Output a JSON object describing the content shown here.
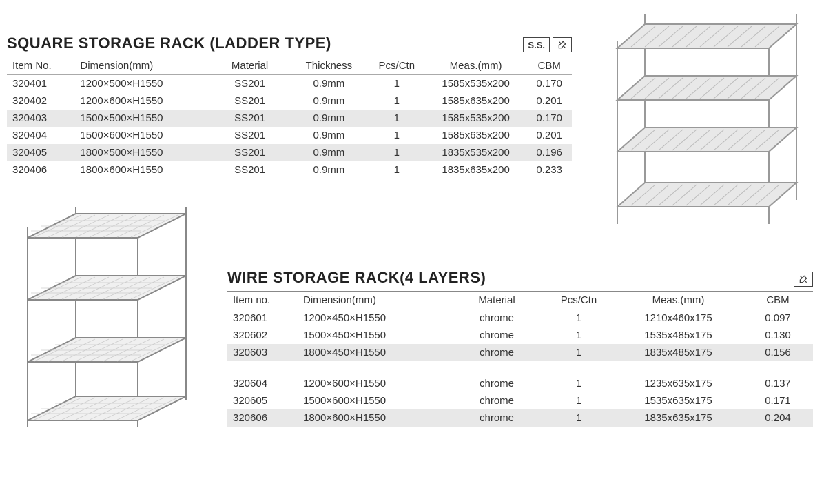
{
  "section1": {
    "title": "SQUARE STORAGE RACK (LADDER TYPE)",
    "badges": [
      "S.S."
    ],
    "columns": [
      "Item No.",
      "Dimension(mm)",
      "Material",
      "Thickness",
      "Pcs/Ctn",
      "Meas.(mm)",
      "CBM"
    ],
    "rows": [
      {
        "item": "320401",
        "dim": "1200×500×H1550",
        "mat": "SS201",
        "thk": "0.9mm",
        "pcs": "1",
        "meas": "1585x535x200",
        "cbm": "0.170"
      },
      {
        "item": "320402",
        "dim": "1200×600×H1550",
        "mat": "SS201",
        "thk": "0.9mm",
        "pcs": "1",
        "meas": "1585x635x200",
        "cbm": "0.201"
      },
      {
        "item": "320403",
        "dim": "1500×500×H1550",
        "mat": "SS201",
        "thk": "0.9mm",
        "pcs": "1",
        "meas": "1585x535x200",
        "cbm": "0.170"
      },
      {
        "item": "320404",
        "dim": "1500×600×H1550",
        "mat": "SS201",
        "thk": "0.9mm",
        "pcs": "1",
        "meas": "1585x635x200",
        "cbm": "0.201"
      },
      {
        "item": "320405",
        "dim": "1800×500×H1550",
        "mat": "SS201",
        "thk": "0.9mm",
        "pcs": "1",
        "meas": "1835x535x200",
        "cbm": "0.196"
      },
      {
        "item": "320406",
        "dim": "1800×600×H1550",
        "mat": "SS201",
        "thk": "0.9mm",
        "pcs": "1",
        "meas": "1835x635x200",
        "cbm": "0.233"
      }
    ]
  },
  "section2": {
    "title": "WIRE STORAGE RACK(4 LAYERS)",
    "columns": [
      "Item no.",
      "Dimension(mm)",
      "Material",
      "Pcs/Ctn",
      "Meas.(mm)",
      "CBM"
    ],
    "rows1": [
      {
        "item": "320601",
        "dim": "1200×450×H1550",
        "mat": "chrome",
        "pcs": "1",
        "meas": "1210x460x175",
        "cbm": "0.097"
      },
      {
        "item": "320602",
        "dim": "1500×450×H1550",
        "mat": "chrome",
        "pcs": "1",
        "meas": "1535x485x175",
        "cbm": "0.130"
      },
      {
        "item": "320603",
        "dim": "1800×450×H1550",
        "mat": "chrome",
        "pcs": "1",
        "meas": "1835x485x175",
        "cbm": "0.156"
      }
    ],
    "rows2": [
      {
        "item": "320604",
        "dim": "1200×600×H1550",
        "mat": "chrome",
        "pcs": "1",
        "meas": "1235x635x175",
        "cbm": "0.137"
      },
      {
        "item": "320605",
        "dim": "1500×600×H1550",
        "mat": "chrome",
        "pcs": "1",
        "meas": "1535x635x175",
        "cbm": "0.171"
      },
      {
        "item": "320606",
        "dim": "1800×600×H1550",
        "mat": "chrome",
        "pcs": "1",
        "meas": "1835x635x175",
        "cbm": "0.204"
      }
    ]
  },
  "colors": {
    "stripe": "#e8e8e8",
    "border": "#888888",
    "text": "#333333",
    "rack_stroke": "#b0b0b0",
    "rack_fill": "#d8d8d8"
  }
}
